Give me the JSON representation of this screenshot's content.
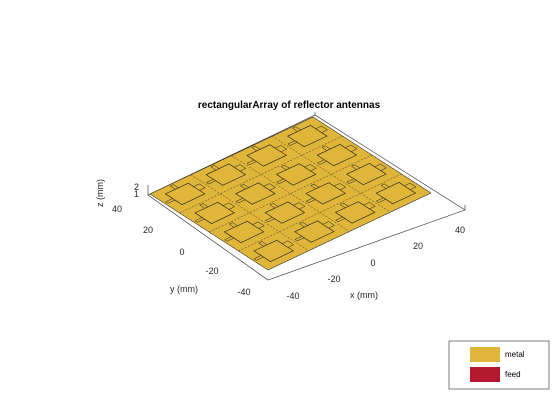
{
  "title": "rectangularArray of reflector antennas",
  "axes": {
    "x_label": "x (mm)",
    "y_label": "y (mm)",
    "z_label": "z (mm)",
    "x_ticks": [
      "-40",
      "-20",
      "0",
      "20",
      "40"
    ],
    "y_ticks": [
      "40",
      "20",
      "0",
      "-20",
      "-40"
    ],
    "z_ticks": [
      "2",
      "1"
    ]
  },
  "legend": {
    "items": [
      {
        "label": "metal",
        "color": "#dfb63a"
      },
      {
        "label": "feed",
        "color": "#b5192f"
      }
    ]
  },
  "colors": {
    "metal": "#dfb63a",
    "metal_edge": "#1a1a1a",
    "feed": "#b5192f",
    "box": "#262626"
  },
  "array": {
    "rows": 4,
    "cols": 4
  }
}
